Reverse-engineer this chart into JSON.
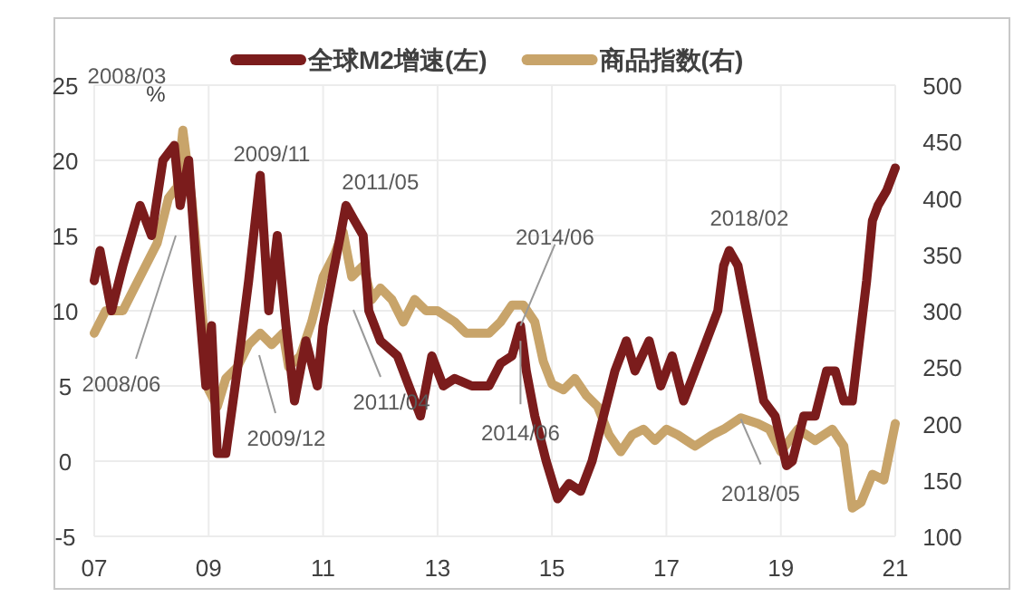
{
  "chart_data": {
    "type": "line",
    "ylabel": "%",
    "series": [
      {
        "name": "全球M2增速(左)",
        "color": "#7b1c1c",
        "axis": "y",
        "x": [
          2007.0,
          2007.1,
          2007.3,
          2007.5,
          2007.8,
          2008.0,
          2008.2,
          2008.4,
          2008.5,
          2008.65,
          2008.8,
          2008.95,
          2009.05,
          2009.15,
          2009.3,
          2009.5,
          2009.7,
          2009.9,
          2010.05,
          2010.2,
          2010.35,
          2010.5,
          2010.7,
          2010.9,
          2011.0,
          2011.15,
          2011.3,
          2011.4,
          2011.55,
          2011.7,
          2011.8,
          2012.0,
          2012.3,
          2012.5,
          2012.7,
          2012.9,
          2013.1,
          2013.3,
          2013.6,
          2013.9,
          2014.1,
          2014.3,
          2014.45,
          2014.55,
          2014.7,
          2014.9,
          2015.1,
          2015.3,
          2015.5,
          2015.7,
          2015.9,
          2016.1,
          2016.3,
          2016.45,
          2016.7,
          2016.9,
          2017.1,
          2017.3,
          2017.5,
          2017.7,
          2017.9,
          2018.0,
          2018.1,
          2018.25,
          2018.5,
          2018.7,
          2018.9,
          2019.1,
          2019.2,
          2019.4,
          2019.6,
          2019.8,
          2019.95,
          2020.1,
          2020.25,
          2020.5,
          2020.6,
          2020.7,
          2020.85,
          2021.0
        ],
        "values": [
          12,
          14,
          10,
          13,
          17,
          15,
          20,
          21,
          17,
          20,
          12,
          5,
          9,
          0.5,
          0.5,
          6,
          12,
          19,
          10,
          15,
          9,
          4,
          8,
          5,
          9,
          12,
          15,
          17,
          16,
          15,
          10,
          8,
          7,
          5,
          3,
          7,
          5,
          5.5,
          5,
          5,
          6.5,
          7,
          9,
          6,
          3,
          0,
          -2.5,
          -1.5,
          -2,
          0,
          3,
          6,
          8,
          6,
          8,
          5,
          7,
          4,
          6,
          8,
          10,
          13,
          14,
          13,
          8,
          4,
          3,
          -0.3,
          0,
          3,
          3,
          6,
          6,
          4,
          4,
          12,
          16,
          17,
          18,
          19.5
        ]
      },
      {
        "name": "商品指数(右)",
        "color": "#c8a46a",
        "axis": "y2",
        "x": [
          2007.0,
          2007.2,
          2007.5,
          2007.7,
          2007.9,
          2008.1,
          2008.3,
          2008.45,
          2008.55,
          2008.7,
          2008.85,
          2009.0,
          2009.15,
          2009.3,
          2009.5,
          2009.7,
          2009.9,
          2010.1,
          2010.3,
          2010.4,
          2010.6,
          2010.8,
          2011.0,
          2011.2,
          2011.35,
          2011.5,
          2011.7,
          2011.85,
          2012.0,
          2012.2,
          2012.4,
          2012.6,
          2012.8,
          2013.0,
          2013.3,
          2013.5,
          2013.7,
          2013.9,
          2014.1,
          2014.3,
          2014.5,
          2014.7,
          2014.85,
          2015.0,
          2015.2,
          2015.4,
          2015.6,
          2015.8,
          2016.0,
          2016.2,
          2016.4,
          2016.6,
          2016.8,
          2017.0,
          2017.2,
          2017.5,
          2017.8,
          2018.0,
          2018.3,
          2018.6,
          2018.8,
          2019.0,
          2019.3,
          2019.6,
          2019.9,
          2020.1,
          2020.25,
          2020.4,
          2020.6,
          2020.8,
          2021.0
        ],
        "values": [
          280,
          300,
          300,
          320,
          340,
          360,
          400,
          410,
          460,
          400,
          320,
          230,
          215,
          240,
          250,
          270,
          280,
          270,
          280,
          250,
          260,
          290,
          330,
          350,
          370,
          330,
          340,
          310,
          320,
          310,
          290,
          310,
          300,
          300,
          290,
          280,
          280,
          280,
          290,
          305,
          305,
          290,
          255,
          235,
          230,
          240,
          225,
          215,
          190,
          175,
          190,
          195,
          185,
          195,
          190,
          180,
          190,
          195,
          205,
          200,
          195,
          175,
          195,
          185,
          195,
          180,
          125,
          130,
          155,
          150,
          200
        ]
      }
    ],
    "xlim": [
      2007,
      2021
    ],
    "xticks": [
      {
        "value": 2007,
        "label": "07"
      },
      {
        "value": 2009,
        "label": "09"
      },
      {
        "value": 2011,
        "label": "11"
      },
      {
        "value": 2013,
        "label": "13"
      },
      {
        "value": 2015,
        "label": "15"
      },
      {
        "value": 2017,
        "label": "17"
      },
      {
        "value": 2019,
        "label": "19"
      },
      {
        "value": 2021,
        "label": "21"
      }
    ],
    "ylim": [
      -5,
      25
    ],
    "yticks": [
      -5,
      0,
      5,
      10,
      15,
      20,
      25
    ],
    "y2lim": [
      100,
      500
    ],
    "y2ticks": [
      100,
      150,
      200,
      250,
      300,
      350,
      400,
      450,
      500
    ],
    "grid": true,
    "legend": "top",
    "annotations": [
      "2008/03",
      "2008/06",
      {
        "text": "2009/11",
        "x": 2009.85,
        "y": 19
      },
      "2009/12",
      {
        "text": "2011/05",
        "x": 2011.4,
        "y": 17
      },
      "2011/04",
      {
        "text": "2014/06",
        "x": 2014.45,
        "y": 9
      },
      {
        "text": "2014/06",
        "x": 2014.45,
        "y": 8
      },
      {
        "text": "2018/02",
        "x": 2018.1,
        "y": 14
      },
      {
        "text": "2018/05",
        "x": 2018.3,
        "y": 2.8
      }
    ]
  }
}
